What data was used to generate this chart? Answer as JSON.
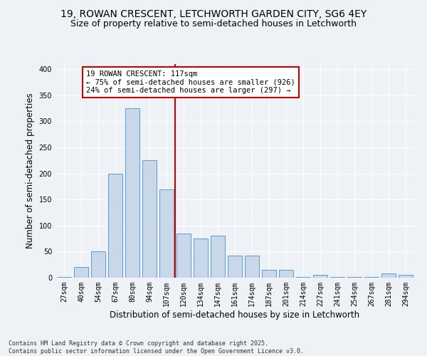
{
  "title_line1": "19, ROWAN CRESCENT, LETCHWORTH GARDEN CITY, SG6 4EY",
  "title_line2": "Size of property relative to semi-detached houses in Letchworth",
  "xlabel": "Distribution of semi-detached houses by size in Letchworth",
  "ylabel": "Number of semi-detached properties",
  "categories": [
    "27sqm",
    "40sqm",
    "54sqm",
    "67sqm",
    "80sqm",
    "94sqm",
    "107sqm",
    "120sqm",
    "134sqm",
    "147sqm",
    "161sqm",
    "174sqm",
    "187sqm",
    "201sqm",
    "214sqm",
    "227sqm",
    "241sqm",
    "254sqm",
    "267sqm",
    "281sqm",
    "294sqm"
  ],
  "values": [
    2,
    20,
    50,
    200,
    325,
    225,
    170,
    85,
    75,
    80,
    42,
    42,
    15,
    15,
    2,
    5,
    2,
    2,
    2,
    8,
    5
  ],
  "bar_color": "#c8d8e8",
  "bar_edge_color": "#5b9bd5",
  "vline_color": "#cc0000",
  "annotation_text": "19 ROWAN CRESCENT: 117sqm\n← 75% of semi-detached houses are smaller (926)\n24% of semi-detached houses are larger (297) →",
  "annotation_box_color": "#cc0000",
  "footnote_line1": "Contains HM Land Registry data © Crown copyright and database right 2025.",
  "footnote_line2": "Contains public sector information licensed under the Open Government Licence v3.0.",
  "ylim": [
    0,
    410
  ],
  "yticks": [
    0,
    50,
    100,
    150,
    200,
    250,
    300,
    350,
    400
  ],
  "bg_color": "#eef2f7",
  "plot_bg_color": "#eef2f7",
  "grid_color": "#ffffff",
  "title_fontsize": 10,
  "subtitle_fontsize": 9,
  "tick_fontsize": 7,
  "label_fontsize": 8.5,
  "annot_fontsize": 7.5,
  "footnote_fontsize": 6
}
